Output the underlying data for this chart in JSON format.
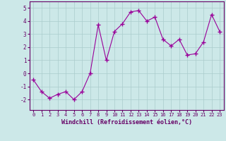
{
  "x": [
    0,
    1,
    2,
    3,
    4,
    5,
    6,
    7,
    8,
    9,
    10,
    11,
    12,
    13,
    14,
    15,
    16,
    17,
    18,
    19,
    20,
    21,
    22,
    23
  ],
  "y": [
    -0.5,
    -1.4,
    -1.9,
    -1.6,
    -1.4,
    -2.0,
    -1.4,
    0.0,
    3.7,
    1.0,
    3.2,
    3.8,
    4.7,
    4.8,
    4.0,
    4.3,
    2.6,
    2.1,
    2.6,
    1.4,
    1.5,
    2.4,
    4.5,
    3.2
  ],
  "xlim": [
    -0.5,
    23.5
  ],
  "ylim": [
    -2.8,
    5.5
  ],
  "yticks": [
    -2,
    -1,
    0,
    1,
    2,
    3,
    4,
    5
  ],
  "xticks": [
    0,
    1,
    2,
    3,
    4,
    5,
    6,
    7,
    8,
    9,
    10,
    11,
    12,
    13,
    14,
    15,
    16,
    17,
    18,
    19,
    20,
    21,
    22,
    23
  ],
  "xlabel": "Windchill (Refroidissement éolien,°C)",
  "line_color": "#990099",
  "marker": "+",
  "bg_color": "#cce8e8",
  "grid_color": "#aacccc",
  "label_color": "#660066",
  "spine_color": "#660066"
}
